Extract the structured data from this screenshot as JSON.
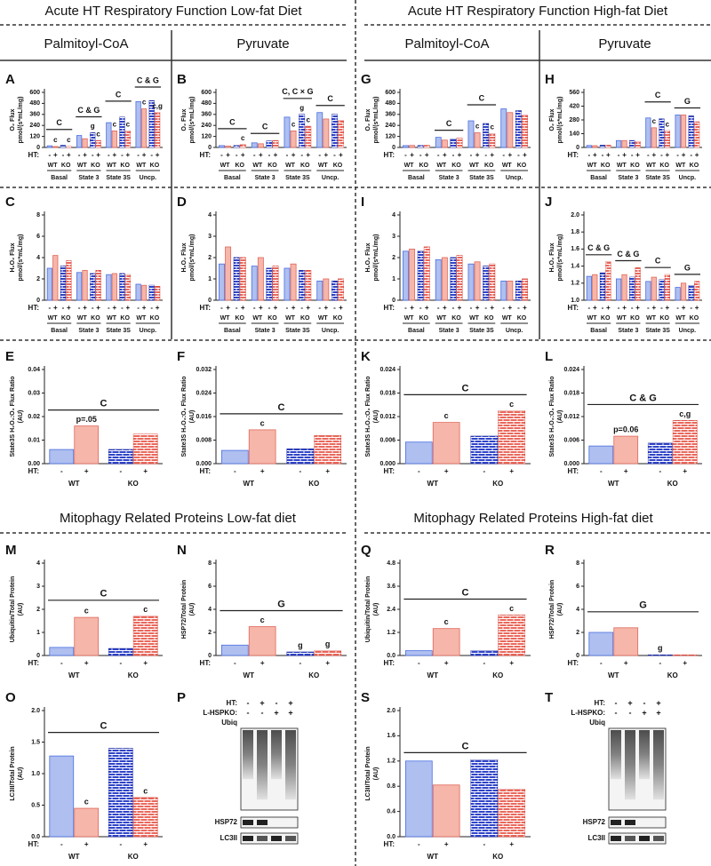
{
  "headers": [
    "Acute HT Respiratory Function Low-fat Diet",
    "Acute HT Respiratory Function High-fat Diet",
    "Mitophagy Related Proteins Low-fat diet",
    "Mitophagy Related Proteins High-fat diet"
  ],
  "subheaders": [
    "Palmitoyl-CoA",
    "Pyruvate",
    "Palmitoyl-CoA",
    "Pyruvate"
  ],
  "style": {
    "bar_colors": [
      "#aebff0",
      "#f6b6aa",
      "#2f44c8",
      "#e9685c"
    ],
    "edge_colors": [
      "#4a6ee0",
      "#e0675a",
      "#1c2aa0",
      "#d84b3f"
    ],
    "patterned": [
      false,
      false,
      true,
      true
    ]
  },
  "chart_data": [
    {
      "type": "bar",
      "panel": "A",
      "ylabel": [
        "O₂ Flux",
        "pmol/(s*mL/mg)"
      ],
      "ylim": [
        0,
        600
      ],
      "yticks": [
        0,
        120,
        240,
        360,
        480,
        600
      ],
      "categories": [
        "Basal",
        "State 3",
        "State 3S",
        "Uncp."
      ],
      "values": [
        [
          18,
          10,
          22,
          10
        ],
        [
          130,
          95,
          160,
          75
        ],
        [
          270,
          180,
          330,
          180
        ],
        [
          500,
          420,
          510,
          380
        ]
      ],
      "bar_labels": [
        [
          null,
          "c",
          null,
          "c"
        ],
        [
          null,
          null,
          "g",
          "c"
        ],
        [
          null,
          "c",
          null,
          "c"
        ],
        [
          null,
          "c",
          null,
          "c,g"
        ]
      ],
      "annotations": [
        {
          "text": "C",
          "from": 0,
          "to": 0
        },
        {
          "text": "C & G",
          "from": 1,
          "to": 1
        },
        {
          "text": "C",
          "from": 2,
          "to": 2
        },
        {
          "text": "C & G",
          "from": 3,
          "to": 3
        }
      ],
      "ht_label": "HT:",
      "ht": [
        "-",
        "+",
        "-",
        "+"
      ],
      "genotypes": [
        "WT",
        "KO"
      ]
    },
    {
      "type": "bar",
      "panel": "B",
      "ylabel": [
        "O₂ Flux",
        "pmol/(s*mL/mg)"
      ],
      "ylim": [
        0,
        600
      ],
      "yticks": [
        0,
        120,
        240,
        360,
        480,
        600
      ],
      "categories": [
        "Basal",
        "State 3",
        "State 3S",
        "Uncp."
      ],
      "values": [
        [
          20,
          15,
          20,
          30
        ],
        [
          50,
          40,
          70,
          75
        ],
        [
          330,
          180,
          360,
          230
        ],
        [
          380,
          310,
          360,
          290
        ]
      ],
      "bar_labels": [
        [
          null,
          null,
          null,
          "c"
        ],
        [
          null,
          null,
          null,
          null
        ],
        [
          null,
          "c",
          "g",
          "c"
        ],
        [
          null,
          null,
          null,
          null
        ]
      ],
      "annotations": [
        {
          "text": "C",
          "from": 0,
          "to": 0
        },
        {
          "text": "C",
          "from": 1,
          "to": 1
        },
        {
          "text": "C, C × G",
          "from": 2,
          "to": 2
        },
        {
          "text": "C",
          "from": 3,
          "to": 3
        }
      ],
      "ht_label": "HT:",
      "ht": [
        "-",
        "+",
        "-",
        "+"
      ],
      "genotypes": [
        "WT",
        "KO"
      ]
    },
    {
      "type": "bar",
      "panel": "G",
      "ylabel": [
        "O₂ Flux",
        "pmol/(s*mL/mg)"
      ],
      "ylim": [
        0,
        600
      ],
      "yticks": [
        0,
        120,
        240,
        360,
        480,
        600
      ],
      "categories": [
        "Basal",
        "State 3",
        "State 3S",
        "Uncp."
      ],
      "values": [
        [
          20,
          22,
          20,
          22
        ],
        [
          110,
          80,
          90,
          100
        ],
        [
          290,
          160,
          260,
          150
        ],
        [
          420,
          380,
          400,
          350
        ]
      ],
      "bar_labels": [
        [
          null,
          null,
          null,
          null
        ],
        [
          null,
          null,
          null,
          null
        ],
        [
          null,
          "c",
          null,
          "c"
        ],
        [
          null,
          null,
          null,
          null
        ]
      ],
      "annotations": [
        {
          "text": "C",
          "from": 1,
          "to": 1
        },
        {
          "text": "C",
          "from": 2,
          "to": 2
        }
      ],
      "ht_label": "HT:",
      "ht": [
        "-",
        "+",
        "-",
        "+"
      ],
      "genotypes": [
        "WT",
        "KO"
      ]
    },
    {
      "type": "bar",
      "panel": "H",
      "ylabel": [
        "O₂ Flux",
        "pmol/(s*mL/mg)"
      ],
      "ylim": [
        0,
        560
      ],
      "yticks": [
        0,
        140,
        280,
        420,
        560
      ],
      "categories": [
        "Basal",
        "State 3",
        "State 3S",
        "Uncp."
      ],
      "values": [
        [
          20,
          18,
          22,
          22
        ],
        [
          70,
          70,
          70,
          60
        ],
        [
          300,
          200,
          290,
          170
        ],
        [
          330,
          330,
          320,
          260
        ]
      ],
      "bar_labels": [
        [
          null,
          null,
          null,
          null
        ],
        [
          null,
          null,
          null,
          null
        ],
        [
          null,
          "c",
          null,
          "c"
        ],
        [
          null,
          null,
          null,
          null
        ]
      ],
      "annotations": [
        {
          "text": "C",
          "from": 2,
          "to": 2
        },
        {
          "text": "G",
          "from": 3,
          "to": 3
        }
      ],
      "ht_label": "HT:",
      "ht": [
        "-",
        "+",
        "-",
        "+"
      ],
      "genotypes": [
        "WT",
        "KO"
      ]
    },
    {
      "type": "bar",
      "panel": "C",
      "ylabel": [
        "H₂O₂ Flux",
        "pmol/(s*mL/mg)"
      ],
      "ylim": [
        0,
        8
      ],
      "yticks": [
        0,
        2,
        4,
        6,
        8
      ],
      "categories": [
        "Basal",
        "State 3",
        "State 3S",
        "Uncp."
      ],
      "values": [
        [
          3,
          4.2,
          3.2,
          3.7
        ],
        [
          2.6,
          2.8,
          2.5,
          2.8
        ],
        [
          2.4,
          2.5,
          2.5,
          2.4
        ],
        [
          1.5,
          1.4,
          1.4,
          1.3
        ]
      ],
      "annotations": [],
      "ht_label": "HT:",
      "ht": [
        "-",
        "+",
        "-",
        "+"
      ],
      "genotypes": [
        "WT",
        "KO"
      ]
    },
    {
      "type": "bar",
      "panel": "D",
      "ylabel": [
        "H₂O₂ Flux",
        "pmol/(s*mL/mg)"
      ],
      "ylim": [
        0,
        4
      ],
      "yticks": [
        0,
        1,
        2,
        3,
        4
      ],
      "categories": [
        "Basal",
        "State 3",
        "State 3S",
        "Uncp."
      ],
      "values": [
        [
          1.7,
          2.5,
          2.0,
          2.0
        ],
        [
          1.6,
          2.0,
          1.5,
          1.6
        ],
        [
          1.5,
          1.7,
          1.4,
          1.4
        ],
        [
          0.9,
          1.0,
          0.9,
          1.0
        ]
      ],
      "annotations": [],
      "ht_label": "HT:",
      "ht": [
        "-",
        "+",
        "-",
        "+"
      ],
      "genotypes": [
        "WT",
        "KO"
      ]
    },
    {
      "type": "bar",
      "panel": "I",
      "ylabel": [
        "H₂O₂ Flux",
        "pmol/(s*mL/mg)"
      ],
      "ylim": [
        0,
        4
      ],
      "yticks": [
        0,
        1,
        2,
        3,
        4
      ],
      "categories": [
        "Basal",
        "State 3",
        "State 3S",
        "Uncp."
      ],
      "values": [
        [
          2.3,
          2.4,
          2.3,
          2.5
        ],
        [
          1.9,
          2.0,
          2.0,
          2.1
        ],
        [
          1.7,
          1.8,
          1.6,
          1.7
        ],
        [
          0.9,
          0.9,
          0.9,
          1.0
        ]
      ],
      "annotations": [],
      "ht_label": "HT:",
      "ht": [
        "-",
        "+",
        "-",
        "+"
      ],
      "genotypes": [
        "WT",
        "KO"
      ]
    },
    {
      "type": "bar",
      "panel": "J",
      "ylabel": [
        "H₂O₂ Flux",
        "pmol/(s*mL/mg)"
      ],
      "ylim": [
        1,
        2
      ],
      "yticks": [
        {
          "value": 1,
          "label": "1.0"
        },
        1.2,
        1.4,
        1.6,
        1.8,
        {
          "value": 2,
          "label": "2.0"
        }
      ],
      "categories": [
        "Basal",
        "State 3",
        "State 3S",
        "Uncp."
      ],
      "values": [
        [
          1.28,
          1.3,
          1.32,
          1.45
        ],
        [
          1.25,
          1.3,
          1.27,
          1.38
        ],
        [
          1.22,
          1.27,
          1.24,
          1.3
        ],
        [
          1.15,
          1.2,
          1.17,
          1.22
        ]
      ],
      "annotations": [
        {
          "text": "C & G",
          "from": 0,
          "to": 0
        },
        {
          "text": "C & G",
          "from": 1,
          "to": 1
        },
        {
          "text": "C",
          "from": 2,
          "to": 2
        },
        {
          "text": "G",
          "from": 3,
          "to": 3
        }
      ],
      "ht_label": "HT:",
      "ht": [
        "-",
        "+",
        "-",
        "+"
      ],
      "genotypes": [
        "WT",
        "KO"
      ]
    },
    {
      "type": "bar",
      "panel": "E",
      "ylabel": [
        "State3S H₂O₂:O₂ Flux Ratio",
        "(AU)"
      ],
      "ylim": [
        0,
        0.04
      ],
      "yticks": [
        {
          "value": 0,
          "label": "0.00"
        },
        0.01,
        0.02,
        0.03,
        0.04
      ],
      "categories": [
        "WT",
        "KO"
      ],
      "values": [
        [
          0.006,
          0.016
        ],
        [
          0.006,
          0.0125
        ]
      ],
      "bar_labels": [
        [
          null,
          "p=.05"
        ],
        [
          null,
          null
        ]
      ],
      "annotations": [
        {
          "text": "C",
          "from": 0,
          "to": 1
        }
      ],
      "ht_label": "HT:",
      "ht": [
        "-",
        "+"
      ]
    },
    {
      "type": "bar",
      "panel": "F",
      "ylabel": [
        "State3S H₂O₂:O₂ Flux Ratio",
        "(AU)"
      ],
      "ylim": [
        0,
        0.032
      ],
      "yticks": [
        {
          "value": 0,
          "label": "0.000"
        },
        0.008,
        0.016,
        0.024,
        0.032
      ],
      "categories": [
        "WT",
        "KO"
      ],
      "values": [
        [
          0.0045,
          0.0115
        ],
        [
          0.005,
          0.0095
        ]
      ],
      "bar_labels": [
        [
          null,
          "c"
        ],
        [
          null,
          null
        ]
      ],
      "annotations": [
        {
          "text": "C",
          "from": 0,
          "to": 1
        }
      ],
      "ht_label": "HT:",
      "ht": [
        "-",
        "+"
      ]
    },
    {
      "type": "bar",
      "panel": "K",
      "ylabel": [
        "State3S H₂O₂:O₂ Flux Ratio",
        "(AU)"
      ],
      "ylim": [
        0,
        0.024
      ],
      "yticks": [
        {
          "value": 0,
          "label": "0.000"
        },
        0.006,
        0.012,
        0.018,
        0.024
      ],
      "categories": [
        "WT",
        "KO"
      ],
      "values": [
        [
          0.0055,
          0.0105
        ],
        [
          0.007,
          0.0135
        ]
      ],
      "bar_labels": [
        [
          null,
          "c"
        ],
        [
          null,
          "c"
        ]
      ],
      "annotations": [
        {
          "text": "C",
          "from": 0,
          "to": 1
        }
      ],
      "ht_label": "HT:",
      "ht": [
        "-",
        "+"
      ]
    },
    {
      "type": "bar",
      "panel": "L",
      "ylabel": [
        "State3S H₂O₂:O₂ Flux Ratio",
        "(AU)"
      ],
      "ylim": [
        0,
        0.024
      ],
      "yticks": [
        {
          "value": 0,
          "label": "0.000"
        },
        0.006,
        0.012,
        0.018,
        0.024
      ],
      "categories": [
        "WT",
        "KO"
      ],
      "values": [
        [
          0.0045,
          0.007
        ],
        [
          0.0052,
          0.011
        ]
      ],
      "bar_labels": [
        [
          null,
          "p=0.06"
        ],
        [
          null,
          "c,g"
        ]
      ],
      "annotations": [
        {
          "text": "C & G",
          "from": 0,
          "to": 1
        }
      ],
      "ht_label": "HT:",
      "ht": [
        "-",
        "+"
      ]
    },
    {
      "type": "bar",
      "panel": "M",
      "ylabel": [
        "Ubiquitin/Total Protein",
        "(AU)"
      ],
      "ylim": [
        0,
        4
      ],
      "yticks": [
        0,
        1,
        2,
        3,
        4
      ],
      "categories": [
        "WT",
        "KO"
      ],
      "values": [
        [
          0.35,
          1.65
        ],
        [
          0.3,
          1.7
        ]
      ],
      "bar_labels": [
        [
          null,
          "c"
        ],
        [
          null,
          "c"
        ]
      ],
      "annotations": [
        {
          "text": "C",
          "from": 0,
          "to": 1
        }
      ],
      "ht_label": "HT:",
      "ht": [
        "-",
        "+"
      ]
    },
    {
      "type": "bar",
      "panel": "N",
      "ylabel": [
        "HSP72/Total Protein",
        "(AU)"
      ],
      "ylim": [
        0,
        8
      ],
      "yticks": [
        0,
        2,
        4,
        6,
        8
      ],
      "categories": [
        "WT",
        "KO"
      ],
      "values": [
        [
          0.9,
          2.5
        ],
        [
          0.3,
          0.4
        ]
      ],
      "bar_labels": [
        [
          null,
          "c"
        ],
        [
          "g",
          "g"
        ]
      ],
      "annotations": [
        {
          "text": "G",
          "from": 0,
          "to": 1
        }
      ],
      "ht_label": "HT:",
      "ht": [
        "-",
        "+"
      ]
    },
    {
      "type": "bar",
      "panel": "Q",
      "ylabel": [
        "Ubiquitin/Total Protein",
        "(AU)"
      ],
      "ylim": [
        0,
        4.8
      ],
      "yticks": [
        {
          "value": 0,
          "label": "0.0"
        },
        1.2,
        2.4,
        3.6,
        4.8
      ],
      "categories": [
        "WT",
        "KO"
      ],
      "values": [
        [
          0.25,
          1.4
        ],
        [
          0.25,
          2.1
        ]
      ],
      "bar_labels": [
        [
          null,
          "c"
        ],
        [
          null,
          "c"
        ]
      ],
      "annotations": [
        {
          "text": "C",
          "from": 0,
          "to": 1
        }
      ],
      "ht_label": "HT:",
      "ht": [
        "-",
        "+"
      ]
    },
    {
      "type": "bar",
      "panel": "R",
      "ylabel": [
        "HSP72/Total Protein",
        "(AU)"
      ],
      "ylim": [
        0,
        8
      ],
      "yticks": [
        0,
        2,
        4,
        6,
        8
      ],
      "categories": [
        "WT",
        "KO"
      ],
      "values": [
        [
          2.0,
          2.4
        ],
        [
          0.05,
          0.05
        ]
      ],
      "bar_labels": [
        [
          null,
          null
        ],
        [
          "g",
          null
        ]
      ],
      "annotations": [
        {
          "text": "G",
          "from": 0,
          "to": 1
        }
      ],
      "ht_label": "HT:",
      "ht": [
        "-",
        "+"
      ]
    },
    {
      "type": "bar",
      "panel": "O",
      "ylabel": [
        "LC3II/Total Protein",
        "(AU)"
      ],
      "ylim": [
        0,
        2
      ],
      "yticks": [
        {
          "value": 0,
          "label": "0.0"
        },
        0.5,
        {
          "value": 1,
          "label": "1.0"
        },
        1.5,
        {
          "value": 2,
          "label": "2.0"
        }
      ],
      "categories": [
        "WT",
        "KO"
      ],
      "values": [
        [
          1.28,
          0.45
        ],
        [
          1.4,
          0.62
        ]
      ],
      "bar_labels": [
        [
          null,
          "c"
        ],
        [
          null,
          "c"
        ]
      ],
      "annotations": [
        {
          "text": "C",
          "from": 0,
          "to": 1
        }
      ],
      "ht_label": "HT:",
      "ht": [
        "-",
        "+"
      ]
    },
    {
      "type": "bar",
      "panel": "S",
      "ylabel": [
        "LC3II/Total Protein",
        "(AU)"
      ],
      "ylim": [
        0,
        2
      ],
      "yticks": [
        {
          "value": 0,
          "label": "0.0"
        },
        0.4,
        0.8,
        1.2,
        1.6,
        {
          "value": 2,
          "label": "2.0"
        }
      ],
      "categories": [
        "WT",
        "KO"
      ],
      "values": [
        [
          1.2,
          0.82
        ],
        [
          1.22,
          0.75
        ]
      ],
      "bar_labels": [
        [
          null,
          null
        ],
        [
          null,
          null
        ]
      ],
      "annotations": [
        {
          "text": "C",
          "from": 0,
          "to": 1
        }
      ],
      "ht_label": "HT:",
      "ht": [
        "-",
        "+"
      ]
    }
  ],
  "blots": [
    {
      "panel": "P",
      "rows": [
        {
          "label": "HT:",
          "symbols": [
            "-",
            "+",
            "-",
            "+"
          ]
        },
        {
          "label": "L-HSPKO:",
          "symbols": [
            "-",
            "-",
            "+",
            "+"
          ]
        }
      ],
      "bands": [
        "Ubiq",
        "HSP72",
        "LC3II"
      ]
    },
    {
      "panel": "T",
      "rows": [
        {
          "label": "HT:",
          "symbols": [
            "-",
            "+",
            "-",
            "+"
          ]
        },
        {
          "label": "L-HSPKO:",
          "symbols": [
            "-",
            "-",
            "+",
            "+"
          ]
        }
      ],
      "bands": [
        "Ubiq",
        "HSP72",
        "LC3II"
      ]
    }
  ]
}
